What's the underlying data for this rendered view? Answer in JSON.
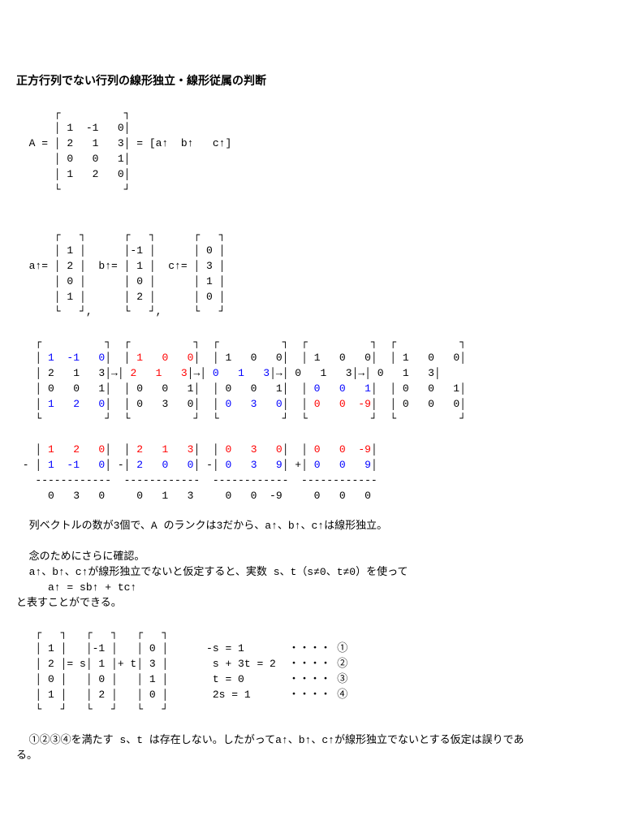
{
  "colors": {
    "text": "#000000",
    "bg": "#ffffff",
    "blue": "#0000ff",
    "red": "#ff0000"
  },
  "fontsize_body": 13,
  "fontsize_title": 14,
  "title": "正方行列でない行列の線形独立・線形従属の判断",
  "A_def": {
    "top": "      ┌          ┐",
    "r1": "      │ 1  -1   0│",
    "r2": "  A = │ 2   1   3│ = [a↑  b↑   c↑]",
    "r3": "      │ 0   0   1│",
    "r4": "      │ 1   2   0│",
    "bot": "      └          ┘"
  },
  "abc_def": {
    "top": "      ┌   ┐      ┌   ┐      ┌   ┐",
    "r1": "      │ 1 │      │-1 │      │ 0 │",
    "r2": "  a↑= │ 2 │  b↑= │ 1 │  c↑= │ 3 │",
    "r3": "      │ 0 │      │ 0 │      │ 1 │",
    "r4": "      │ 1 │      │ 2 │      │ 0 │",
    "bot": "      └   ┘,     └   ┘,     └   ┘"
  },
  "rref": {
    "top": "   ┌          ┐  ┌          ┐  ┌          ┐  ┌          ┐  ┌          ┐",
    "r1p": "   │ ",
    "m1_r1": "1  -1   0",
    "r1m": "│  │ ",
    "m2_r1": "1   0   0",
    "r1m2": "│  │ 1   0   0│  │ 1   0   0│  │ 1   0   0│",
    "r2p": "   │ 2   1   3│→│ ",
    "m2_r2": "2   1   3",
    "r2m": "│→│ ",
    "m3_r2": "0   1   3",
    "r2m2": "│→│ 0   1   3│→│ 0   1   3│",
    "r3p": "   │ 0   0   1│  │ 0   0   1│  │ 0   0   1│  │ ",
    "m4_r3": "0   0   1",
    "r3m2": "│  │ 0   0   1│",
    "r4p": "   │ ",
    "m1_r4": "1   2   0",
    "r4m": "│  │ 0   3   0│  │ ",
    "m3_r4": "0   3   0",
    "r4m2": "│  │ ",
    "m4_r4": "0   0  -9",
    "r4m3": "│  │ 0   0   0│",
    "bot": "   └          ┘  └          ┘  └          ┘  └          ┘  └          ┘"
  },
  "sub": {
    "r1p": "   │ ",
    "a1": "1   2   0",
    "r1m": "│  │ ",
    "b1": "2   1   3",
    "r1m2": "│  │ ",
    "c1": "0   3   0",
    "r1m3": "│  │ ",
    "d1": "0   0  -9",
    "r1e": "│",
    "r2p": " - │ ",
    "a2": "1  -1   0",
    "r2m": "│ -│ ",
    "b2": "2   0   0",
    "r2m2": "│ -│ ",
    "c2": "0   3   9",
    "r2m3": "│ +│ ",
    "d2": "0   0   9",
    "r2e": "│",
    "rule": "   ------------  ------------  ------------  ------------",
    "res": "     0   3   0     0   1   3     0   0  -9     0   0   0"
  },
  "t1": "  列ベクトルの数が3個で、A のランクは3だから、a↑、b↑、c↑は線形独立。",
  "t2": "  念のためにさらに確認。",
  "t3": "  a↑、b↑、c↑が線形独立でないと仮定すると、実数 s、t（s≠0、t≠0）を使って",
  "t4": "     a↑ = sb↑ + tc↑",
  "t5": "と表すことができる。",
  "sys": {
    "top": "   ┌   ┐   ┌   ┐   ┌   ┐",
    "r1": "   │ 1 │   │-1 │   │ 0 │      -s = 1       ・・・・ ①",
    "r2": "   │ 2 │= s│ 1 │+ t│ 3 │       s + 3t = 2  ・・・・ ②",
    "r3": "   │ 0 │   │ 0 │   │ 1 │       t = 0       ・・・・ ③",
    "r4": "   │ 1 │   │ 2 │   │ 0 │       2s = 1      ・・・・ ④",
    "bot": "   └   ┘   └   ┘   └   ┘"
  },
  "t6": "  ①②③④を満たす s、t は存在しない。したがってa↑、b↑、c↑が線形独立でないとする仮定は誤りであ",
  "t7": "る。"
}
